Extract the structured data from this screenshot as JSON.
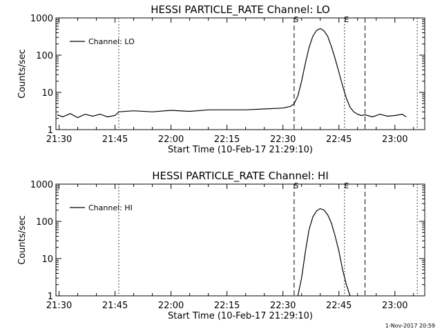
{
  "footer_date": "1-Nov-2017 20:59",
  "chart_data": [
    {
      "type": "line",
      "title": "HESSI PARTICLE_RATE Channel: LO",
      "xlabel": "Start Time (10-Feb-17 21:29:10)",
      "ylabel": "Counts/sec",
      "yscale": "log",
      "ylim": [
        1,
        1000
      ],
      "xlim": [
        "21:29:10",
        "23:08:00"
      ],
      "x_ticks": [
        "21:30",
        "21:45",
        "22:00",
        "22:15",
        "22:30",
        "22:45",
        "23:00"
      ],
      "y_ticks": [
        "1",
        "10",
        "100",
        "1000"
      ],
      "legend": {
        "position": "top-left",
        "entries": [
          "Channel: LO"
        ]
      },
      "grid": false,
      "markers": [
        {
          "time": "21:46:00",
          "style": "dotted",
          "label": ""
        },
        {
          "time": "22:33:00",
          "style": "dashed",
          "label": "S"
        },
        {
          "time": "22:46:30",
          "style": "dotted",
          "label": "E"
        },
        {
          "time": "22:52:00",
          "style": "dashed",
          "label": ""
        },
        {
          "time": "23:06:00",
          "style": "dotted",
          "label": ""
        }
      ],
      "series": [
        {
          "name": "Channel: LO",
          "x": [
            "21:29:30",
            "21:31:00",
            "21:33:00",
            "21:35:00",
            "21:37:00",
            "21:39:00",
            "21:41:00",
            "21:43:00",
            "21:45:00",
            "21:46:00",
            "21:50:00",
            "21:55:00",
            "22:00:00",
            "22:05:00",
            "22:10:00",
            "22:15:00",
            "22:20:00",
            "22:25:00",
            "22:30:00",
            "22:32:00",
            "22:33:00",
            "22:34:00",
            "22:35:00",
            "22:36:00",
            "22:37:00",
            "22:38:00",
            "22:39:00",
            "22:40:00",
            "22:41:00",
            "22:42:00",
            "22:43:00",
            "22:44:00",
            "22:45:00",
            "22:46:00",
            "22:47:00",
            "22:48:00",
            "22:49:00",
            "22:50:00",
            "22:51:00",
            "22:52:00",
            "22:54:00",
            "22:56:00",
            "22:58:00",
            "23:00:00",
            "23:02:00",
            "23:03:00"
          ],
          "y": [
            2.5,
            2.2,
            2.7,
            2.1,
            2.6,
            2.3,
            2.6,
            2.2,
            2.4,
            3.0,
            3.2,
            3.0,
            3.3,
            3.1,
            3.4,
            3.4,
            3.4,
            3.6,
            3.8,
            4.2,
            5,
            8,
            20,
            60,
            160,
            320,
            460,
            520,
            450,
            320,
            170,
            80,
            35,
            15,
            7,
            4,
            3,
            2.6,
            2.4,
            2.5,
            2.2,
            2.6,
            2.3,
            2.4,
            2.6,
            2.2
          ]
        }
      ]
    },
    {
      "type": "line",
      "title": "HESSI PARTICLE_RATE Channel: HI",
      "xlabel": "Start Time (10-Feb-17 21:29:10)",
      "ylabel": "Counts/sec",
      "yscale": "log",
      "ylim": [
        1,
        1000
      ],
      "xlim": [
        "21:29:10",
        "23:08:00"
      ],
      "x_ticks": [
        "21:30",
        "21:45",
        "22:00",
        "22:15",
        "22:30",
        "22:45",
        "23:00"
      ],
      "y_ticks": [
        "1",
        "10",
        "100",
        "1000"
      ],
      "legend": {
        "position": "top-left",
        "entries": [
          "Channel: HI"
        ]
      },
      "grid": false,
      "markers": [
        {
          "time": "21:46:00",
          "style": "dotted",
          "label": ""
        },
        {
          "time": "22:33:00",
          "style": "dashed",
          "label": "S"
        },
        {
          "time": "22:46:30",
          "style": "dotted",
          "label": "E"
        },
        {
          "time": "22:52:00",
          "style": "dashed",
          "label": ""
        },
        {
          "time": "23:06:00",
          "style": "dotted",
          "label": ""
        }
      ],
      "series": [
        {
          "name": "Channel: HI",
          "x": [
            "22:34:00",
            "22:35:00",
            "22:36:00",
            "22:37:00",
            "22:38:00",
            "22:39:00",
            "22:40:00",
            "22:41:00",
            "22:42:00",
            "22:43:00",
            "22:44:00",
            "22:45:00",
            "22:46:00",
            "22:47:00",
            "22:48:00"
          ],
          "y": [
            1,
            3,
            15,
            60,
            130,
            190,
            220,
            200,
            150,
            90,
            40,
            16,
            5,
            2,
            1
          ]
        }
      ]
    }
  ]
}
